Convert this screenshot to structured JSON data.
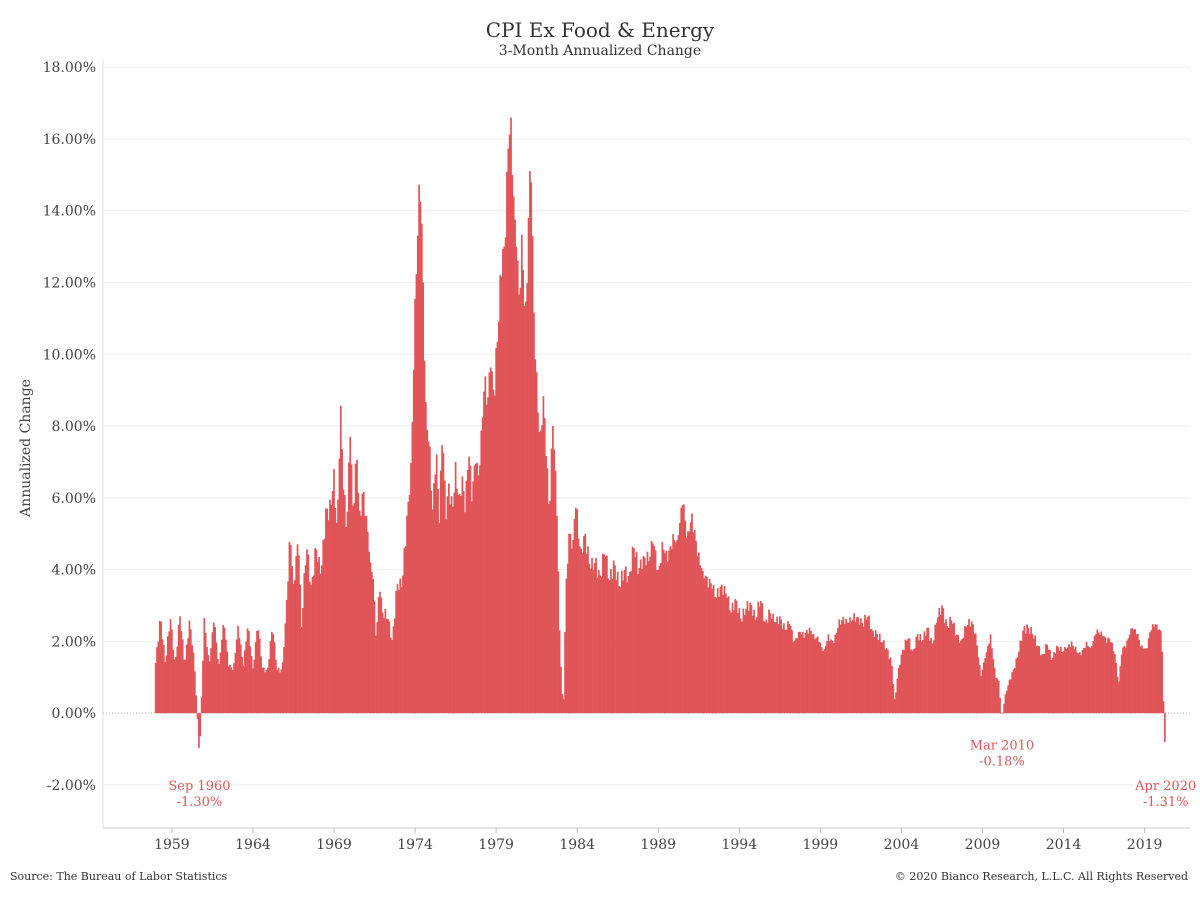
{
  "page": {
    "title": "CPI Ex Food & Energy",
    "subtitle": "3-Month Annualized Change",
    "source": "Source: The Bureau of Labor Statistics",
    "copyright": "© 2020 Bianco Research, L.L.C. All Rights Reserved"
  },
  "chart_data": {
    "type": "bar",
    "title": "CPI Ex Food & Energy",
    "subtitle": "3-Month Annualized Change",
    "ylabel": "Annualized Change",
    "xlabel": "",
    "bar_color": "#e05558",
    "annotation_color": "#e05558",
    "grid": true,
    "ylim": [
      -3.2,
      18.2
    ],
    "xlim": [
      1954.75,
      2021.8
    ],
    "y_ticks": [
      -2,
      0,
      2,
      4,
      6,
      8,
      10,
      12,
      14,
      16,
      18
    ],
    "y_tick_labels": [
      "-2.00%",
      "0.00%",
      "2.00%",
      "4.00%",
      "6.00%",
      "8.00%",
      "10.00%",
      "12.00%",
      "14.00%",
      "16.00%",
      "18.00%"
    ],
    "x_ticks": [
      1959,
      1964,
      1969,
      1974,
      1979,
      1984,
      1989,
      1994,
      1999,
      2004,
      2009,
      2014,
      2019
    ],
    "x_tick_labels": [
      "1959",
      "1964",
      "1969",
      "1974",
      "1979",
      "1984",
      "1989",
      "1994",
      "1999",
      "2004",
      "2009",
      "2014",
      "2019"
    ],
    "anchors": [
      [
        1958.0,
        1.4
      ],
      [
        1958.3,
        2.7
      ],
      [
        1958.6,
        1.35
      ],
      [
        1958.9,
        2.7
      ],
      [
        1959.2,
        1.35
      ],
      [
        1959.5,
        2.7
      ],
      [
        1959.8,
        1.35
      ],
      [
        1960.1,
        2.65
      ],
      [
        1960.4,
        1.3
      ],
      [
        1960.6,
        -0.3
      ],
      [
        1960.7,
        -1.3
      ],
      [
        1960.8,
        0.0
      ],
      [
        1961.0,
        2.65
      ],
      [
        1961.3,
        1.3
      ],
      [
        1961.6,
        2.6
      ],
      [
        1961.9,
        1.3
      ],
      [
        1962.2,
        2.6
      ],
      [
        1962.5,
        1.3
      ],
      [
        1962.8,
        1.25
      ],
      [
        1963.1,
        2.5
      ],
      [
        1963.4,
        1.25
      ],
      [
        1963.7,
        2.5
      ],
      [
        1964.0,
        1.25
      ],
      [
        1964.3,
        2.45
      ],
      [
        1964.6,
        1.2
      ],
      [
        1964.9,
        1.2
      ],
      [
        1965.2,
        2.4
      ],
      [
        1965.5,
        1.2
      ],
      [
        1965.8,
        1.2
      ],
      [
        1966.0,
        2.5
      ],
      [
        1966.3,
        4.9
      ],
      [
        1966.5,
        3.6
      ],
      [
        1966.8,
        4.8
      ],
      [
        1967.0,
        2.4
      ],
      [
        1967.3,
        4.7
      ],
      [
        1967.6,
        3.5
      ],
      [
        1967.9,
        4.6
      ],
      [
        1968.2,
        3.8
      ],
      [
        1968.5,
        5.7
      ],
      [
        1968.8,
        5.6
      ],
      [
        1969.0,
        6.8
      ],
      [
        1969.2,
        5.0
      ],
      [
        1969.4,
        8.8
      ],
      [
        1969.6,
        6.0
      ],
      [
        1969.8,
        5.2
      ],
      [
        1970.0,
        7.7
      ],
      [
        1970.2,
        5.4
      ],
      [
        1970.4,
        7.2
      ],
      [
        1970.6,
        5.5
      ],
      [
        1970.8,
        6.3
      ],
      [
        1971.0,
        5.5
      ],
      [
        1971.2,
        4.3
      ],
      [
        1971.4,
        3.9
      ],
      [
        1971.6,
        2.0
      ],
      [
        1971.8,
        3.5
      ],
      [
        1972.0,
        2.8
      ],
      [
        1972.3,
        2.7
      ],
      [
        1972.6,
        2.0
      ],
      [
        1972.9,
        3.6
      ],
      [
        1973.2,
        3.5
      ],
      [
        1973.5,
        5.5
      ],
      [
        1973.7,
        6.2
      ],
      [
        1973.9,
        9.3
      ],
      [
        1974.1,
        12.5
      ],
      [
        1974.3,
        14.7
      ],
      [
        1974.5,
        12.0
      ],
      [
        1974.7,
        8.0
      ],
      [
        1974.9,
        7.6
      ],
      [
        1975.1,
        5.5
      ],
      [
        1975.3,
        7.6
      ],
      [
        1975.5,
        5.3
      ],
      [
        1975.7,
        7.9
      ],
      [
        1975.9,
        5.3
      ],
      [
        1976.1,
        6.5
      ],
      [
        1976.3,
        5.5
      ],
      [
        1976.5,
        7.0
      ],
      [
        1976.7,
        5.9
      ],
      [
        1976.9,
        6.7
      ],
      [
        1977.1,
        5.5
      ],
      [
        1977.3,
        7.4
      ],
      [
        1977.5,
        5.9
      ],
      [
        1977.7,
        7.1
      ],
      [
        1977.9,
        6.5
      ],
      [
        1978.1,
        8.0
      ],
      [
        1978.3,
        9.5
      ],
      [
        1978.5,
        8.8
      ],
      [
        1978.7,
        9.8
      ],
      [
        1978.9,
        8.7
      ],
      [
        1979.1,
        10.5
      ],
      [
        1979.3,
        12.0
      ],
      [
        1979.5,
        13.0
      ],
      [
        1979.7,
        15.5
      ],
      [
        1979.85,
        16.2
      ],
      [
        1980.0,
        15.0
      ],
      [
        1980.2,
        13.5
      ],
      [
        1980.4,
        11.5
      ],
      [
        1980.6,
        13.5
      ],
      [
        1980.8,
        11.0
      ],
      [
        1981.0,
        13.8
      ],
      [
        1981.15,
        15.2
      ],
      [
        1981.3,
        11.5
      ],
      [
        1981.5,
        9.5
      ],
      [
        1981.7,
        7.5
      ],
      [
        1981.9,
        9.0
      ],
      [
        1982.1,
        7.0
      ],
      [
        1982.3,
        5.5
      ],
      [
        1982.5,
        8.0
      ],
      [
        1982.7,
        6.5
      ],
      [
        1982.9,
        2.5
      ],
      [
        1983.05,
        0.8
      ],
      [
        1983.15,
        0.0
      ],
      [
        1983.3,
        3.5
      ],
      [
        1983.5,
        5.0
      ],
      [
        1983.7,
        4.5
      ],
      [
        1983.9,
        5.8
      ],
      [
        1984.2,
        4.5
      ],
      [
        1984.5,
        5.0
      ],
      [
        1984.8,
        4.0
      ],
      [
        1985.1,
        4.2
      ],
      [
        1985.4,
        3.8
      ],
      [
        1985.7,
        4.5
      ],
      [
        1986.0,
        3.7
      ],
      [
        1986.3,
        4.2
      ],
      [
        1986.6,
        3.5
      ],
      [
        1986.9,
        4.0
      ],
      [
        1987.2,
        3.8
      ],
      [
        1987.5,
        4.6
      ],
      [
        1987.8,
        4.0
      ],
      [
        1988.1,
        4.4
      ],
      [
        1988.4,
        4.2
      ],
      [
        1988.7,
        4.8
      ],
      [
        1989.0,
        4.0
      ],
      [
        1989.3,
        4.6
      ],
      [
        1989.6,
        4.2
      ],
      [
        1989.9,
        5.0
      ],
      [
        1990.2,
        4.8
      ],
      [
        1990.5,
        5.8
      ],
      [
        1990.8,
        5.0
      ],
      [
        1991.1,
        5.6
      ],
      [
        1991.4,
        4.4
      ],
      [
        1991.7,
        4.0
      ],
      [
        1992.0,
        3.8
      ],
      [
        1992.3,
        3.5
      ],
      [
        1992.6,
        3.2
      ],
      [
        1992.9,
        3.6
      ],
      [
        1993.2,
        3.3
      ],
      [
        1993.5,
        2.8
      ],
      [
        1993.8,
        3.2
      ],
      [
        1994.1,
        2.6
      ],
      [
        1994.4,
        2.9
      ],
      [
        1994.7,
        3.1
      ],
      [
        1995.0,
        2.6
      ],
      [
        1995.3,
        3.2
      ],
      [
        1995.6,
        2.5
      ],
      [
        1995.9,
        2.8
      ],
      [
        1996.2,
        2.5
      ],
      [
        1996.5,
        2.7
      ],
      [
        1996.8,
        2.3
      ],
      [
        1997.1,
        2.5
      ],
      [
        1997.4,
        2.0
      ],
      [
        1997.7,
        2.3
      ],
      [
        1998.0,
        2.1
      ],
      [
        1998.3,
        2.4
      ],
      [
        1998.6,
        2.2
      ],
      [
        1998.9,
        2.0
      ],
      [
        1999.2,
        1.7
      ],
      [
        1999.5,
        2.2
      ],
      [
        1999.8,
        1.9
      ],
      [
        2000.1,
        2.4
      ],
      [
        2000.4,
        2.7
      ],
      [
        2000.7,
        2.5
      ],
      [
        2001.0,
        2.6
      ],
      [
        2001.3,
        2.7
      ],
      [
        2001.6,
        2.5
      ],
      [
        2001.9,
        2.7
      ],
      [
        2002.2,
        2.3
      ],
      [
        2002.5,
        2.2
      ],
      [
        2002.8,
        2.0
      ],
      [
        2003.1,
        1.8
      ],
      [
        2003.4,
        1.4
      ],
      [
        2003.6,
        0.3
      ],
      [
        2003.8,
        1.2
      ],
      [
        2004.1,
        1.8
      ],
      [
        2004.4,
        2.1
      ],
      [
        2004.7,
        1.7
      ],
      [
        2005.0,
        2.2
      ],
      [
        2005.3,
        2.0
      ],
      [
        2005.6,
        2.4
      ],
      [
        2005.9,
        1.9
      ],
      [
        2006.2,
        2.6
      ],
      [
        2006.5,
        3.0
      ],
      [
        2006.8,
        2.4
      ],
      [
        2007.1,
        2.6
      ],
      [
        2007.4,
        2.2
      ],
      [
        2007.7,
        2.0
      ],
      [
        2008.0,
        2.4
      ],
      [
        2008.3,
        2.6
      ],
      [
        2008.6,
        2.2
      ],
      [
        2008.9,
        1.0
      ],
      [
        2009.2,
        1.6
      ],
      [
        2009.5,
        2.2
      ],
      [
        2009.8,
        1.0
      ],
      [
        2010.0,
        0.9
      ],
      [
        2010.2,
        -0.18
      ],
      [
        2010.4,
        0.5
      ],
      [
        2010.6,
        0.8
      ],
      [
        2010.9,
        1.2
      ],
      [
        2011.2,
        1.6
      ],
      [
        2011.5,
        2.3
      ],
      [
        2011.8,
        2.4
      ],
      [
        2012.1,
        2.2
      ],
      [
        2012.4,
        1.9
      ],
      [
        2012.7,
        1.6
      ],
      [
        2013.0,
        1.9
      ],
      [
        2013.3,
        1.5
      ],
      [
        2013.6,
        1.9
      ],
      [
        2013.9,
        1.7
      ],
      [
        2014.2,
        1.8
      ],
      [
        2014.5,
        2.0
      ],
      [
        2014.8,
        1.7
      ],
      [
        2015.1,
        1.6
      ],
      [
        2015.4,
        2.0
      ],
      [
        2015.7,
        1.8
      ],
      [
        2016.0,
        2.2
      ],
      [
        2016.3,
        2.3
      ],
      [
        2016.6,
        2.1
      ],
      [
        2016.9,
        2.0
      ],
      [
        2017.2,
        1.6
      ],
      [
        2017.4,
        0.8
      ],
      [
        2017.6,
        1.7
      ],
      [
        2017.9,
        2.0
      ],
      [
        2018.2,
        2.4
      ],
      [
        2018.5,
        2.2
      ],
      [
        2018.8,
        1.9
      ],
      [
        2019.1,
        1.8
      ],
      [
        2019.4,
        2.3
      ],
      [
        2019.7,
        2.5
      ],
      [
        2020.0,
        2.3
      ],
      [
        2020.1,
        1.6
      ],
      [
        2020.2,
        -0.3
      ],
      [
        2020.3,
        -1.31
      ]
    ],
    "annotations": [
      {
        "label": "Sep 1960",
        "value_label": "-1.30%",
        "x": 1960.7,
        "y": -1.3,
        "anchor": "middle"
      },
      {
        "label": "Mar 2010",
        "value_label": "-0.18%",
        "x": 2010.2,
        "y": -0.18,
        "anchor": "middle"
      },
      {
        "label": "Apr 2020",
        "value_label": "-1.31%",
        "x": 2020.3,
        "y": -1.31,
        "anchor": "middle"
      }
    ]
  }
}
